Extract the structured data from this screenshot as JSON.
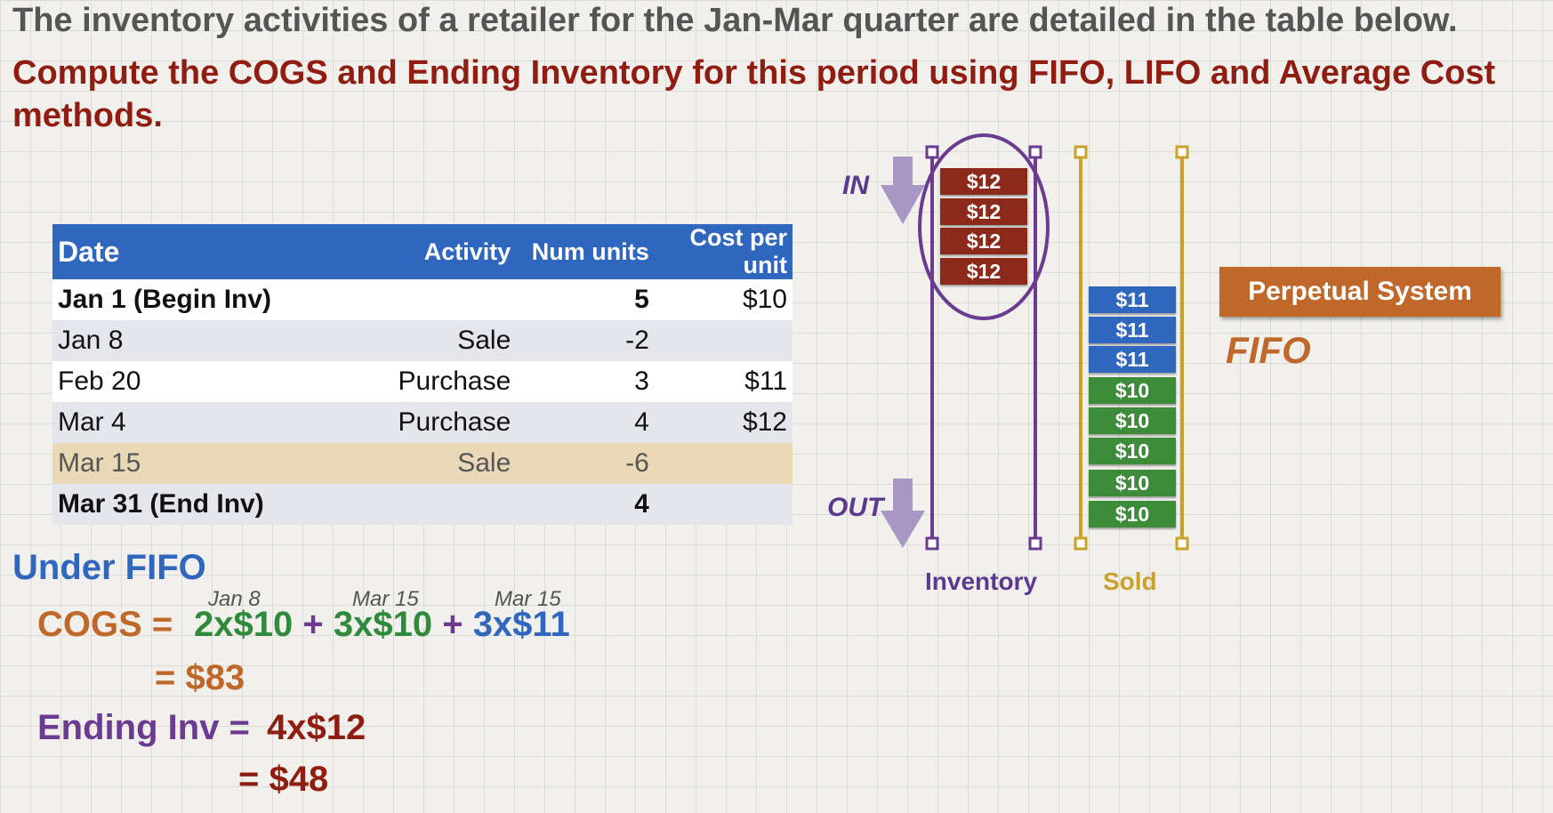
{
  "heading": {
    "line1": "The inventory activities of a retailer for the Jan-Mar quarter are detailed in the table below.",
    "line2": "Compute the COGS and Ending Inventory for this period using FIFO, LIFO and Average Cost methods."
  },
  "table": {
    "headers": [
      "Date",
      "Activity",
      "Num units",
      "Cost per unit"
    ],
    "rows": [
      {
        "date": "Jan 1 (Begin Inv)",
        "activity": "",
        "units": "5",
        "cost": "$10"
      },
      {
        "date": "Jan 8",
        "activity": "Sale",
        "units": "-2",
        "cost": ""
      },
      {
        "date": "Feb 20",
        "activity": "Purchase",
        "units": "3",
        "cost": "$11"
      },
      {
        "date": "Mar 4",
        "activity": "Purchase",
        "units": "4",
        "cost": "$12"
      },
      {
        "date": "Mar 15",
        "activity": "Sale",
        "units": "-6",
        "cost": ""
      },
      {
        "date": "Mar 31 (End Inv)",
        "activity": "",
        "units": "4",
        "cost": ""
      }
    ]
  },
  "calc": {
    "under": "Under FIFO",
    "cogs_label": "COGS =",
    "terms": [
      {
        "date": "Jan 8",
        "expr": "2x$10"
      },
      {
        "date": "Mar 15",
        "expr": "3x$10"
      },
      {
        "date": "Mar 15",
        "expr": "3x$11"
      }
    ],
    "plus": "+",
    "cogs_total": "= $83",
    "ending_label": "Ending Inv =",
    "ending_expr": "4x$12",
    "ending_total": "= $48"
  },
  "diagram": {
    "in_label": "IN",
    "out_label": "OUT",
    "inventory_label": "Inventory",
    "sold_label": "Sold",
    "inventory_blocks": [
      "$12",
      "$12",
      "$12",
      "$12"
    ],
    "sold_blocks": [
      "$11",
      "$11",
      "$11",
      "$10",
      "$10",
      "$10",
      "$10",
      "$10"
    ],
    "system_label": "Perpetual System",
    "method_label": "FIFO",
    "colors": {
      "c12": "#8b2a1b",
      "c11": "#2f66be",
      "c10": "#3c8c3a",
      "inventory": "#6a3b90",
      "sold": "#c9a227"
    }
  }
}
